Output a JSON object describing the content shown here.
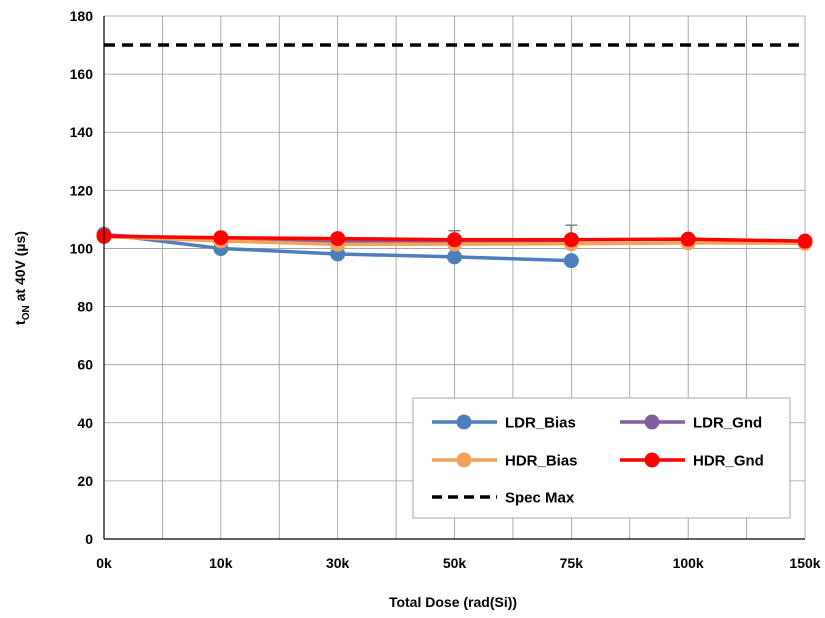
{
  "chart_data": {
    "type": "line",
    "categories": [
      "0k",
      "10k",
      "30k",
      "50k",
      "75k",
      "100k",
      "150k"
    ],
    "xlabel": "Total Dose (rad(Si))",
    "ylabel": {
      "main": "t",
      "sub": "ON",
      "rest": " at 40V (µs)"
    },
    "ylim": [
      0,
      180
    ],
    "yticks": [
      0,
      20,
      40,
      60,
      80,
      100,
      120,
      140,
      160,
      180
    ],
    "grid": true,
    "legend_position": "bottom-right",
    "series": [
      {
        "name": "LDR_Bias",
        "color": "#4F7EBD",
        "marker": "circle",
        "values": [
          104.9,
          100.0,
          98.1,
          97.1,
          95.8,
          null,
          null
        ]
      },
      {
        "name": "LDR_Gnd",
        "color": "#7F5F9F",
        "marker": "circle",
        "values": [
          104.7,
          102.5,
          102.2,
          102.3,
          102.2,
          null,
          null
        ],
        "error_bars": [
          0,
          0,
          0,
          3.8,
          5.8,
          0,
          0
        ]
      },
      {
        "name": "HDR_Bias",
        "color": "#F4A259",
        "marker": "circle",
        "values": [
          104.1,
          102.6,
          101.4,
          101.5,
          101.6,
          101.9,
          101.8
        ]
      },
      {
        "name": "HDR_Gnd",
        "color": "#FF0000",
        "marker": "circle",
        "values": [
          104.2,
          103.7,
          103.4,
          103.0,
          103.0,
          103.2,
          102.5
        ]
      }
    ],
    "reference_lines": [
      {
        "name": "Spec Max",
        "value": 170,
        "color": "#000000",
        "style": "dashed"
      }
    ]
  }
}
